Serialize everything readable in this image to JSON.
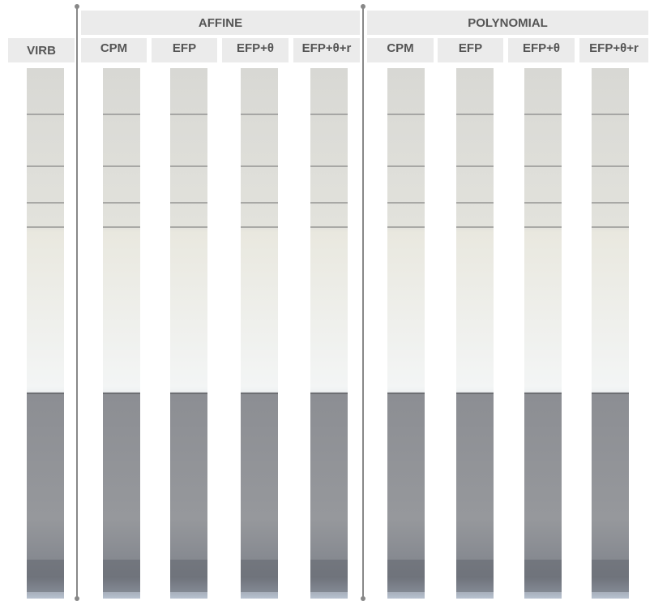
{
  "reference": {
    "label": "VIRB"
  },
  "groups": [
    {
      "title": "AFFINE",
      "methods": [
        "CPM",
        "EFP",
        "EFP+θ",
        "EFP+θ+r"
      ]
    },
    {
      "title": "POLYNOMIAL",
      "methods": [
        "CPM",
        "EFP",
        "EFP+θ",
        "EFP+θ+r"
      ]
    }
  ]
}
